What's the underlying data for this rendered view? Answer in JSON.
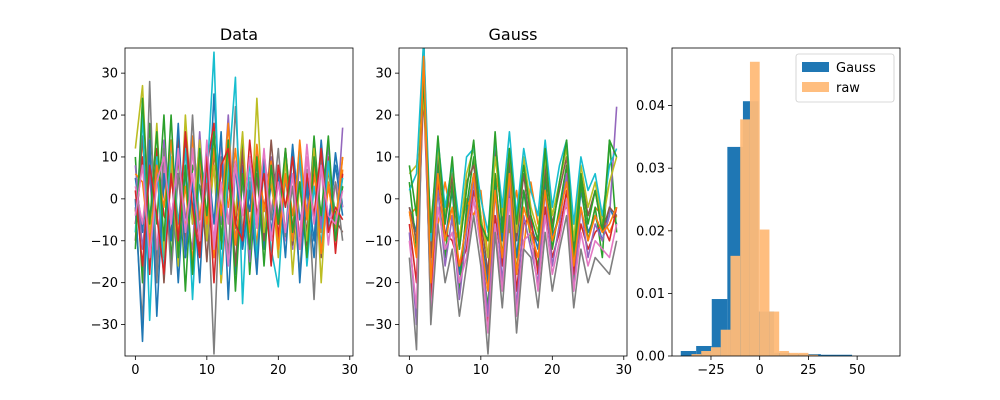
{
  "chart_data": [
    {
      "type": "line",
      "title": "Data",
      "xlabel": "",
      "ylabel": "",
      "xlim": [
        -1.45,
        30.45
      ],
      "ylim": [
        -37.5,
        36
      ],
      "xticks": [
        0,
        10,
        20,
        30
      ],
      "yticks": [
        -30,
        -20,
        -10,
        0,
        10,
        20,
        30
      ],
      "x": [
        0,
        1,
        2,
        3,
        4,
        5,
        6,
        7,
        8,
        9,
        10,
        11,
        12,
        13,
        14,
        15,
        16,
        17,
        18,
        19,
        20,
        21,
        22,
        23,
        24,
        25,
        26,
        27,
        28,
        29
      ],
      "series": [
        {
          "color": "#1f77b4",
          "values": [
            5,
            -8,
            12,
            -15,
            3,
            9,
            -20,
            6,
            -4,
            11,
            -10,
            25,
            -6,
            14,
            -18,
            8,
            -3,
            10,
            -12,
            4,
            7,
            -9,
            13,
            -5,
            2,
            -14,
            9,
            -7,
            11,
            -2
          ]
        },
        {
          "color": "#ff7f0e",
          "values": [
            -3,
            14,
            -10,
            6,
            -12,
            4,
            9,
            -8,
            15,
            -5,
            10,
            -14,
            7,
            -2,
            12,
            -9,
            5,
            -11,
            8,
            3,
            -6,
            10,
            -4,
            9,
            -13,
            6,
            -8,
            4,
            -10,
            7
          ]
        },
        {
          "color": "#2ca02c",
          "values": [
            10,
            -20,
            18,
            -6,
            20,
            -15,
            12,
            -22,
            8,
            3,
            -9,
            16,
            -12,
            10,
            -7,
            14,
            -18,
            6,
            -3,
            9,
            -11,
            5,
            -8,
            13,
            -10,
            15,
            -6,
            8,
            -4,
            3
          ]
        },
        {
          "color": "#d62728",
          "values": [
            -6,
            10,
            -18,
            12,
            -4,
            -8,
            15,
            -10,
            5,
            -12,
            8,
            18,
            -20,
            4,
            -6,
            11,
            -14,
            9,
            -2,
            7,
            -9,
            12,
            -7,
            3,
            -11,
            8,
            -5,
            10,
            -13,
            6
          ]
        },
        {
          "color": "#9467bd",
          "values": [
            8,
            -12,
            6,
            -18,
            14,
            -6,
            10,
            -4,
            -12,
            16,
            -8,
            12,
            -6,
            20,
            -10,
            4,
            -15,
            12,
            -8,
            10,
            -4,
            6,
            -12,
            9,
            -3,
            11,
            -7,
            13,
            -9,
            17
          ]
        },
        {
          "color": "#8c564b",
          "values": [
            -10,
            15,
            -5,
            10,
            -20,
            8,
            -12,
            14,
            -6,
            9,
            -15,
            11,
            -3,
            8,
            -16,
            12,
            -7,
            5,
            -10,
            14,
            -6,
            9,
            -11,
            4,
            -8,
            12,
            -14,
            7,
            -5,
            -8
          ]
        },
        {
          "color": "#e377c2",
          "values": [
            3,
            -6,
            10,
            -12,
            8,
            -4,
            6,
            -14,
            12,
            -8,
            4,
            -10,
            14,
            -6,
            9,
            -12,
            5,
            -7,
            11,
            -3,
            8,
            -10,
            6,
            -9,
            13,
            -5,
            7,
            -11,
            4,
            -2
          ]
        },
        {
          "color": "#7f7f7f",
          "values": [
            -2,
            -30,
            28,
            -20,
            12,
            -18,
            6,
            -12,
            20,
            -10,
            5,
            -37,
            10,
            -14,
            22,
            -8,
            4,
            -16,
            9,
            -5,
            12,
            -9,
            3,
            -18,
            7,
            -24,
            11,
            -6,
            4,
            -10
          ]
        },
        {
          "color": "#bcbd22",
          "values": [
            12,
            27,
            -8,
            18,
            -14,
            10,
            -16,
            20,
            -6,
            14,
            -10,
            8,
            -20,
            12,
            -4,
            16,
            -12,
            24,
            -8,
            6,
            -14,
            10,
            -18,
            4,
            -10,
            12,
            -20,
            8,
            -6,
            10
          ]
        },
        {
          "color": "#17becf",
          "values": [
            -8,
            20,
            -29,
            10,
            -18,
            14,
            -6,
            12,
            -24,
            8,
            4,
            35,
            -18,
            6,
            29,
            -25,
            10,
            -14,
            8,
            -12,
            -21,
            6,
            -10,
            12,
            -16,
            3,
            -11,
            9,
            -6,
            5
          ]
        },
        {
          "color": "#1f77b4",
          "values": [
            0,
            -34,
            14,
            -28,
            6,
            -10,
            18,
            -14,
            4,
            -20,
            12,
            -6,
            16,
            -24,
            8,
            -12,
            2,
            -18,
            10,
            -8,
            6,
            -14,
            12,
            -20,
            4,
            -10,
            14,
            -6,
            8,
            -4
          ]
        },
        {
          "color": "#ff7f0e",
          "values": [
            6,
            4,
            -12,
            8,
            -2,
            14,
            -9,
            3,
            -15,
            10,
            -6,
            12,
            -4,
            18,
            -11,
            5,
            -8,
            13,
            -3,
            9,
            -12,
            6,
            -10,
            14,
            -5,
            8,
            -13,
            3,
            -7,
            10
          ]
        },
        {
          "color": "#2ca02c",
          "values": [
            -12,
            24,
            -6,
            16,
            -10,
            20,
            -14,
            8,
            -18,
            12,
            -4,
            16,
            -10,
            14,
            -22,
            6,
            -12,
            10,
            -16,
            8,
            -6,
            12,
            -8,
            4,
            -14,
            10,
            -4,
            15,
            -10,
            3
          ]
        },
        {
          "color": "#d62728",
          "values": [
            2,
            -16,
            8,
            -4,
            -18,
            6,
            -10,
            16,
            -2,
            -14,
            10,
            -20,
            8,
            12,
            -6,
            -10,
            14,
            -4,
            6,
            -16,
            8,
            -2,
            10,
            -12,
            6,
            -4,
            12,
            -8,
            -2,
            -5
          ]
        },
        {
          "color": "#e377c2",
          "values": [
            -4,
            8,
            -14,
            4,
            10,
            -6,
            12,
            -8,
            6,
            -10,
            14,
            -12,
            4,
            -16,
            8,
            -4,
            10,
            -6,
            12,
            -10,
            4,
            -8,
            6,
            -12,
            10,
            -6,
            8,
            -4,
            -6,
            2
          ]
        }
      ]
    },
    {
      "type": "line",
      "title": "Gauss",
      "xlabel": "",
      "ylabel": "",
      "xlim": [
        -1.45,
        30.45
      ],
      "ylim": [
        -37.5,
        36
      ],
      "xticks": [
        0,
        10,
        20,
        30
      ],
      "yticks": [
        -30,
        -20,
        -10,
        0,
        10,
        20,
        30
      ],
      "x": [
        0,
        1,
        2,
        3,
        4,
        5,
        6,
        7,
        8,
        9,
        10,
        11,
        12,
        13,
        14,
        15,
        16,
        17,
        18,
        19,
        20,
        21,
        22,
        23,
        24,
        25,
        26,
        27,
        28,
        29
      ],
      "series": [
        {
          "color": "#1f77b4",
          "values": [
            -2,
            -8,
            34,
            -14,
            8,
            -10,
            2,
            -18,
            -4,
            6,
            -8,
            -20,
            4,
            -10,
            8,
            -14,
            2,
            -6,
            -12,
            4,
            -9,
            -4,
            6,
            -16,
            2,
            -8,
            -4,
            -10,
            -2,
            -6
          ]
        },
        {
          "color": "#ff7f0e",
          "values": [
            -4,
            -2,
            30,
            -8,
            -6,
            4,
            -6,
            -10,
            0,
            -4,
            2,
            -14,
            6,
            -2,
            -8,
            2,
            -12,
            4,
            -6,
            -2,
            -10,
            -4,
            -2,
            -6,
            4,
            -10,
            -2,
            -4,
            -8,
            -4
          ]
        },
        {
          "color": "#2ca02c",
          "values": [
            4,
            -12,
            38,
            -20,
            10,
            -14,
            4,
            -22,
            -2,
            10,
            -12,
            -26,
            6,
            -14,
            10,
            -18,
            2,
            -10,
            -16,
            6,
            -12,
            -2,
            8,
            -20,
            4,
            -10,
            -2,
            -14,
            14,
            -8
          ]
        },
        {
          "color": "#d62728",
          "values": [
            -6,
            -20,
            26,
            -24,
            4,
            -8,
            -10,
            -16,
            -12,
            2,
            -6,
            -30,
            -4,
            -16,
            2,
            -22,
            -6,
            -4,
            -18,
            -2,
            -14,
            -8,
            2,
            -18,
            -6,
            -12,
            -8,
            -6,
            -10,
            -2
          ]
        },
        {
          "color": "#9467bd",
          "values": [
            -8,
            -30,
            38,
            -18,
            2,
            -16,
            -4,
            -24,
            -8,
            4,
            -10,
            -28,
            2,
            -20,
            4,
            -26,
            -4,
            -12,
            -20,
            2,
            -16,
            -6,
            6,
            -22,
            -2,
            -14,
            -6,
            -10,
            -4,
            22
          ]
        },
        {
          "color": "#8c564b",
          "values": [
            -2,
            -10,
            36,
            -14,
            12,
            -6,
            6,
            -12,
            4,
            8,
            -4,
            -18,
            12,
            -6,
            10,
            -10,
            6,
            -8,
            -10,
            8,
            -6,
            2,
            10,
            -12,
            6,
            -4,
            2,
            -8,
            -2,
            -4
          ]
        },
        {
          "color": "#e377c2",
          "values": [
            -10,
            -26,
            32,
            -28,
            -2,
            -12,
            -8,
            -20,
            -14,
            0,
            -12,
            -32,
            -6,
            -22,
            0,
            -28,
            -10,
            -8,
            -22,
            -4,
            -18,
            -10,
            0,
            -22,
            -8,
            -16,
            -10,
            -12,
            -14,
            -6
          ]
        },
        {
          "color": "#7f7f7f",
          "values": [
            -14,
            -36,
            38,
            -30,
            -6,
            -20,
            -12,
            -28,
            -16,
            -4,
            -16,
            -37,
            -8,
            -26,
            -4,
            -32,
            -12,
            -14,
            -26,
            -8,
            -22,
            -12,
            -4,
            -26,
            -12,
            -20,
            -14,
            -16,
            -18,
            -10
          ]
        },
        {
          "color": "#bcbd22",
          "values": [
            6,
            8,
            24,
            -6,
            12,
            -4,
            8,
            -10,
            6,
            12,
            -4,
            -14,
            10,
            -4,
            12,
            -8,
            10,
            -2,
            -8,
            10,
            -4,
            4,
            12,
            -10,
            8,
            -2,
            4,
            -6,
            4,
            10
          ]
        },
        {
          "color": "#17becf",
          "values": [
            2,
            6,
            38,
            -10,
            14,
            -2,
            8,
            -6,
            10,
            12,
            0,
            -8,
            14,
            -2,
            16,
            -4,
            12,
            2,
            -4,
            14,
            -2,
            8,
            14,
            -6,
            10,
            2,
            6,
            -4,
            8,
            12
          ]
        },
        {
          "color": "#2ca02c",
          "values": [
            8,
            -4,
            28,
            -8,
            15,
            -6,
            10,
            -12,
            2,
            14,
            -6,
            -10,
            16,
            -8,
            12,
            -6,
            8,
            -4,
            -10,
            12,
            -8,
            4,
            14,
            -14,
            6,
            -6,
            2,
            -8,
            14,
            10
          ]
        },
        {
          "color": "#ff7f0e",
          "values": [
            -3,
            -14,
            34,
            -20,
            6,
            -10,
            -2,
            -16,
            -6,
            6,
            -10,
            -22,
            2,
            -14,
            6,
            -18,
            -2,
            -8,
            -14,
            2,
            -10,
            -4,
            4,
            -16,
            -2,
            -10,
            -4,
            -8,
            -6,
            -2
          ]
        }
      ]
    },
    {
      "type": "bar",
      "subtype": "histogram",
      "title": "",
      "xlabel": "",
      "ylabel": "",
      "xlim": [
        -45,
        72
      ],
      "ylim": [
        0,
        0.0492
      ],
      "xticks": [
        -25,
        0,
        25,
        50
      ],
      "yticks": [
        0.0,
        0.01,
        0.02,
        0.03,
        0.04
      ],
      "ytick_labels": [
        "0.00",
        "0.01",
        "0.02",
        "0.03",
        "0.04"
      ],
      "legend_position": "upper right",
      "series": [
        {
          "name": "Gauss",
          "color": "#1f77b4",
          "alpha": 1.0,
          "bin_edges": [
            -40.5,
            -32.6,
            -24.6,
            -16.6,
            -8.6,
            -0.6,
            7.4,
            15.4,
            23.4,
            31.4,
            39.4,
            47.4
          ],
          "values": [
            0.0008,
            0.0016,
            0.0091,
            0.0334,
            0.0407,
            0.0071,
            0.0005,
            0.0003,
            0.0003,
            0.0002,
            0.0002
          ]
        },
        {
          "name": "raw",
          "color": "#ffbb78",
          "alpha": 0.95,
          "bin_edges": [
            -35.0,
            -30.0,
            -25.0,
            -20.0,
            -15.0,
            -10.0,
            -5.0,
            0.0,
            5.0,
            10.0,
            15.0,
            20.0,
            25.0,
            30.0
          ],
          "values": [
            0.0003,
            0.0008,
            0.0014,
            0.0042,
            0.016,
            0.0378,
            0.047,
            0.0202,
            0.0071,
            0.0008,
            0.0005,
            0.0005,
            0.0002
          ]
        }
      ]
    }
  ]
}
